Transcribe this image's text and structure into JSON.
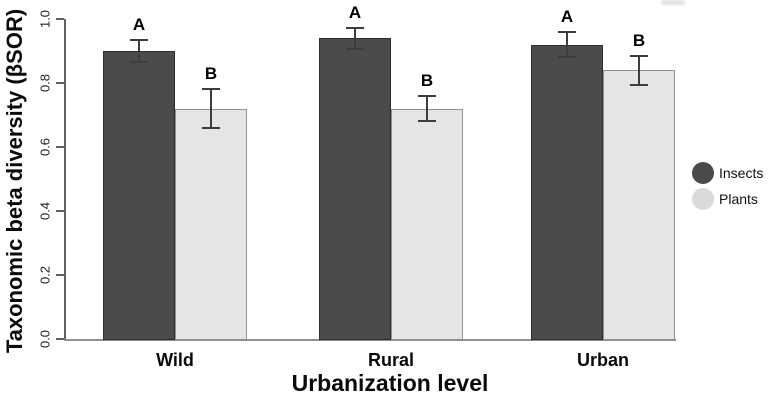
{
  "figure": {
    "type": "statistical-bar-chart"
  },
  "chart_data": {
    "type": "bar",
    "title": "",
    "xlabel": "Urbanization level",
    "ylabel": "Taxonomic beta diversity (βSOR)",
    "categories": [
      "Wild",
      "Rural",
      "Urban"
    ],
    "series": [
      {
        "name": "Insects",
        "color": "#4b4b4b",
        "values": [
          0.9,
          0.94,
          0.92
        ],
        "errors": [
          0.035,
          0.033,
          0.04
        ],
        "sig_letters": [
          "A",
          "A",
          "A"
        ]
      },
      {
        "name": "Plants",
        "color": "#e5e5e5",
        "values": [
          0.72,
          0.72,
          0.84
        ],
        "errors": [
          0.06,
          0.04,
          0.045
        ],
        "sig_letters": [
          "B",
          "B",
          "B"
        ]
      }
    ],
    "ylim": [
      0.0,
      1.0
    ],
    "yticks": [
      "0.0",
      "0.2",
      "0.4",
      "0.6",
      "0.8",
      "1.0"
    ],
    "grid": false,
    "error_bars": true,
    "legend_position": "right"
  },
  "legend": {
    "items": [
      {
        "label": "Insects",
        "color": "#4a4a4a"
      },
      {
        "label": "Plants",
        "color": "#dadada"
      }
    ]
  }
}
